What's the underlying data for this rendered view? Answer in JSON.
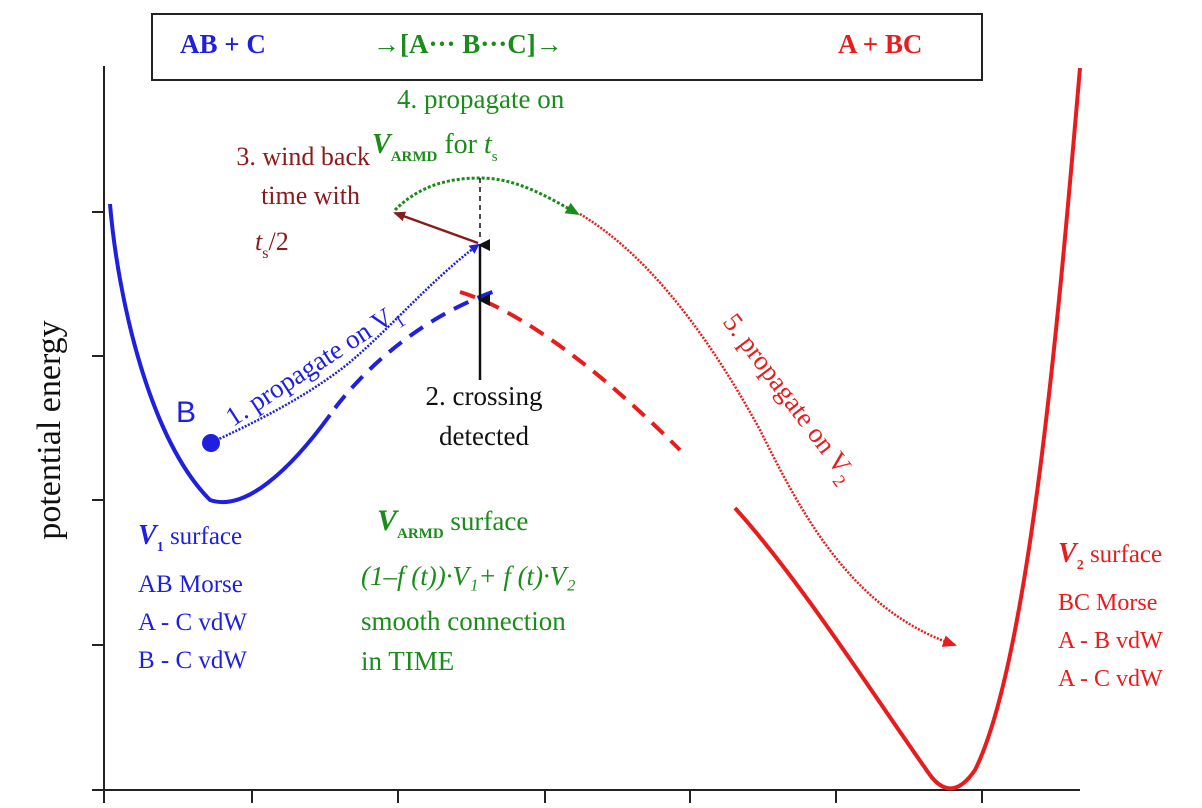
{
  "header": {
    "left": "AB + C",
    "middle": "→[A··· B···C]→",
    "right": "A + BC"
  },
  "axis": {
    "ylabel": "potential energy"
  },
  "labels": {
    "point_b": "B",
    "step1": "1. propagate on V",
    "step1_sub": "1",
    "step2_line1": "2. crossing",
    "step2_line2": "detected",
    "step3_line1": "3. wind back",
    "step3_line2": "time with",
    "step3_t": "t",
    "step3_sub": "s",
    "step3_tail": "/2",
    "step4_line1": "4. propagate on",
    "step4_V": "V",
    "step4_sub": "ARMD",
    "step4_for": " for ",
    "step4_t": "t",
    "step4_tsub": "s",
    "step5": "5. propagate on V",
    "step5_sub": "2"
  },
  "v1_block": {
    "V": "V",
    "sub": "1",
    "title_rest": " surface",
    "lines": [
      "AB Morse",
      "A - C vdW",
      "B - C vdW"
    ]
  },
  "armd_block": {
    "V": "V",
    "sub": "ARMD",
    "title_rest": " surface",
    "formula": "(1–f (t))·V₁+ f (t)·V₂",
    "lines": [
      "smooth connection",
      "in TIME"
    ]
  },
  "v2_block": {
    "V": "V",
    "sub": "2",
    "title_rest": " surface",
    "lines": [
      "BC Morse",
      "A - B vdW",
      "A - C vdW"
    ]
  },
  "colors": {
    "v1": "#1f1fe0",
    "armd": "#1a8c1a",
    "v2": "#e81c1c",
    "windback": "#8b1a1a",
    "crossing": "#111111"
  }
}
